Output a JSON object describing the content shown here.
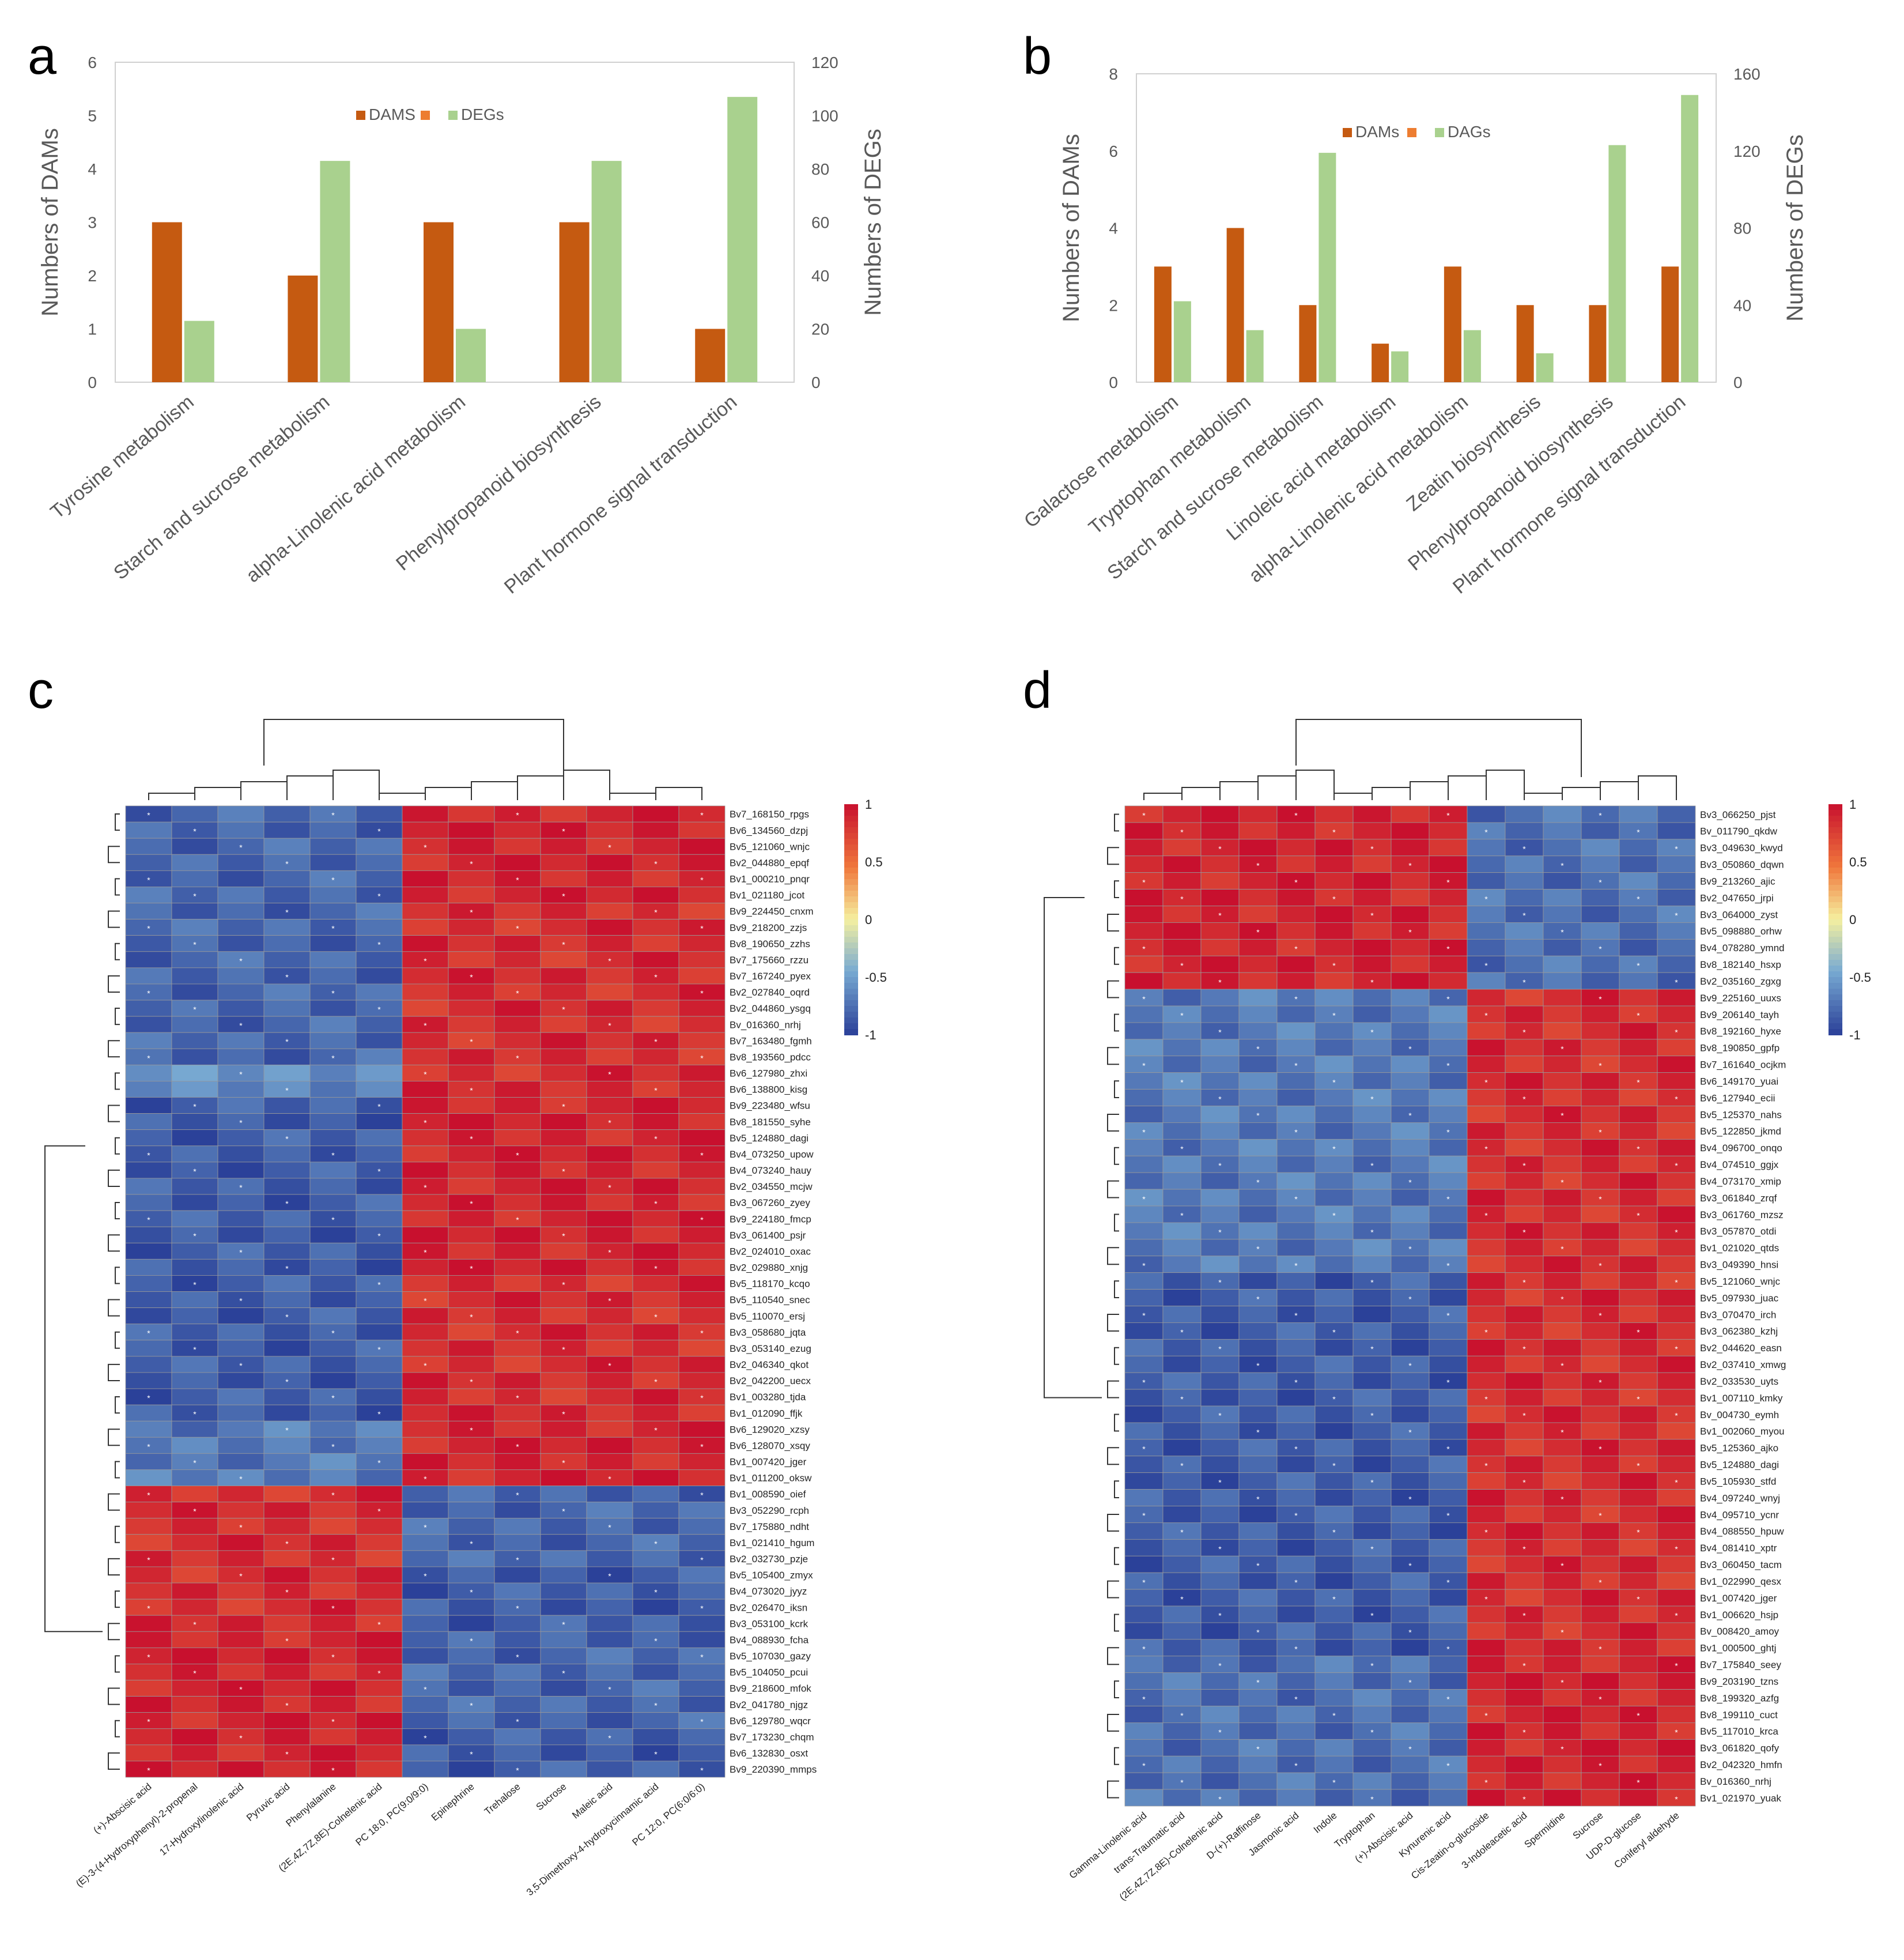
{
  "panels": {
    "a": "a",
    "b": "b",
    "c": "c",
    "d": "d"
  },
  "colors": {
    "dams": "#c55a11",
    "degs": "#a9d18e",
    "legend_mid": "#ed7d31",
    "hm_low": "#2a3f98",
    "hm_mid": "#f5f0a0",
    "hm_high": "#c8102e"
  },
  "chart_data": [
    {
      "id": "a",
      "type": "bar",
      "categories": [
        "Tyrosine metabolism",
        "Starch and sucrose metabolism",
        "alpha-Linolenic acid metabolism",
        "Phenylpropanoid biosynthesis",
        "Plant hormone signal transduction"
      ],
      "series": [
        {
          "name": "DAMS",
          "axis": "left",
          "values": [
            3,
            2,
            3,
            3,
            1
          ]
        },
        {
          "name": "DEGs",
          "axis": "right",
          "values": [
            23,
            83,
            20,
            83,
            107
          ]
        }
      ],
      "legend": [
        "DAMS",
        "",
        "DEGs"
      ],
      "ylabel": "Numbers of DAMs",
      "y2label": "Numbers of DEGs",
      "ylim": [
        0,
        6
      ],
      "y2lim": [
        0,
        120
      ],
      "yticks": [
        0,
        1,
        2,
        3,
        4,
        5,
        6
      ],
      "y2ticks": [
        0,
        20,
        40,
        60,
        80,
        100,
        120
      ]
    },
    {
      "id": "b",
      "type": "bar",
      "categories": [
        "Galactose metabolism",
        "Tryptophan metabolism",
        "Starch and sucrose metabolism",
        "Linoleic acid metabolism",
        "alpha-Linolenic acid metabolism",
        "Zeatin biosynthesis",
        "Phenylpropanoid biosynthesis",
        "Plant hormone signal transduction"
      ],
      "series": [
        {
          "name": "DAMs",
          "axis": "left",
          "values": [
            3,
            4,
            2,
            1,
            3,
            2,
            2,
            3
          ]
        },
        {
          "name": "DAGs",
          "axis": "right",
          "values": [
            42,
            27,
            119,
            16,
            27,
            15,
            123,
            149
          ]
        }
      ],
      "legend": [
        "DAMs",
        "",
        "DAGs"
      ],
      "ylabel": "Numbers of DAMs",
      "y2label": "Numbers of DEGs",
      "ylim": [
        0,
        8
      ],
      "y2lim": [
        0,
        160
      ],
      "yticks": [
        0,
        2,
        4,
        6,
        8
      ],
      "y2ticks": [
        0,
        40,
        80,
        120,
        160
      ]
    },
    {
      "id": "c",
      "type": "heatmap",
      "columns": [
        "(+)-Abscisic acid",
        "(E)-3-(4-Hydroxyphenyl)-2-propenal",
        "17-Hydroxylinolenic acid",
        "Pyruvic acid",
        "Phenylalanine",
        "(2E,4Z,7Z,8E)-Colnelenic acid",
        "PC 18:0, PC(9:0/9:0)",
        "Epinephrine",
        "Trehalose",
        "Sucrose",
        "Maleic acid",
        "3,5-Dimethoxy-4-hydroxycinnamic acid",
        "PC 12:0, PC(6:0/6:0)"
      ],
      "rows": [
        "Bv7_168150_rpgs",
        "Bv6_134560_dzpj",
        "Bv5_121060_wnjc",
        "Bv2_044880_epqf",
        "Bv1_000210_pnqr",
        "Bv1_021180_jcot",
        "Bv9_224450_cnxm",
        "Bv9_218200_zzjs",
        "Bv8_190650_zzhs",
        "Bv7_175660_rzzu",
        "Bv7_167240_pyex",
        "Bv2_027840_oqrd",
        "Bv2_044860_ysgq",
        "Bv_016360_nrhj",
        "Bv7_163480_fgmh",
        "Bv8_193560_pdcc",
        "Bv6_127980_zhxi",
        "Bv6_138800_kisg",
        "Bv9_223480_wfsu",
        "Bv8_181550_syhe",
        "Bv5_124880_dagi",
        "Bv4_073250_upow",
        "Bv4_073240_hauy",
        "Bv2_034550_mcjw",
        "Bv3_067260_zyey",
        "Bv9_224180_fmcp",
        "Bv3_061400_psjr",
        "Bv2_024010_oxac",
        "Bv2_029880_xnjg",
        "Bv5_118170_kcqo",
        "Bv5_110540_snec",
        "Bv5_110070_ersj",
        "Bv3_058680_jqta",
        "Bv3_053140_ezug",
        "Bv2_046340_qkot",
        "Bv2_042200_uecx",
        "Bv1_003280_tjda",
        "Bv1_012090_ffjk",
        "Bv6_129020_xzsy",
        "Bv6_128070_xsqy",
        "Bv1_007420_jger",
        "Bv1_011200_oksw",
        "Bv1_008590_oief",
        "Bv3_052290_rcph",
        "Bv7_175880_ndht",
        "Bv1_021410_hgum",
        "Bv2_032730_pzje",
        "Bv5_105400_zmyx",
        "Bv4_073020_jyyz",
        "Bv2_026470_iksn",
        "Bv3_053100_kcrk",
        "Bv4_088930_fcha",
        "Bv5_107030_gazy",
        "Bv5_104050_pcui",
        "Bv9_218600_mfok",
        "Bv2_041780_njgz",
        "Bv6_129780_wqcr",
        "Bv7_173230_chqm",
        "Bv6_132830_osxt",
        "Bv9_220390_mmps"
      ],
      "row_groups": [
        [
          0,
          6,
          -0.8,
          0.9
        ],
        [
          6,
          16,
          -0.8,
          0.85
        ],
        [
          16,
          18,
          -0.6,
          0.85
        ],
        [
          18,
          29,
          -0.85,
          0.9
        ],
        [
          29,
          38,
          -0.85,
          0.85
        ],
        [
          38,
          42,
          -0.7,
          0.9
        ],
        [
          42,
          47,
          0.85,
          -0.8
        ],
        [
          47,
          51,
          0.85,
          -0.85
        ],
        [
          51,
          57,
          0.9,
          -0.8
        ],
        [
          57,
          60,
          0.9,
          -0.85
        ]
      ],
      "split_col": 6,
      "colorbar_ticks": [
        1,
        0.5,
        0,
        -0.5,
        -1
      ]
    },
    {
      "id": "d",
      "type": "heatmap",
      "columns": [
        "Gamma-Linolenic acid",
        "trans-Traumatic acid",
        "(2E,4Z,7Z,8E)-Colnelenic acid",
        "D-(+)-Raffinose",
        "Jasmonic acid",
        "Indole",
        "Tryptophan",
        "(+)-Abscisic acid",
        "Kynurenic acid",
        "Cis-Zeatin-o-glucoside",
        "3-Indoleacetic acid",
        "Spermidine",
        "Sucrose",
        "UDP-D-glucose",
        "Coniferyl aldehyde"
      ],
      "rows": [
        "Bv3_066250_pjst",
        "Bv_011790_qkdw",
        "Bv3_049630_kwyd",
        "Bv3_050860_dqwn",
        "Bv9_213260_ajic",
        "Bv2_047650_jrpi",
        "Bv3_064000_zyst",
        "Bv5_098880_orhw",
        "Bv4_078280_ymnd",
        "Bv8_182140_hsxp",
        "Bv2_035160_zgxg",
        "Bv9_225160_uuxs",
        "Bv9_206140_tayh",
        "Bv8_192160_hyxe",
        "Bv8_190850_gpfp",
        "Bv7_161640_ocjkm",
        "Bv6_149170_yuai",
        "Bv6_127940_ecii",
        "Bv5_125370_nahs",
        "Bv5_122850_jkmd",
        "Bv4_096700_onqo",
        "Bv4_074510_ggjx",
        "Bv4_073170_xmip",
        "Bv3_061840_zrqf",
        "Bv3_061760_mzsz",
        "Bv3_057870_otdi",
        "Bv1_021020_qtds",
        "Bv3_049390_hnsi",
        "Bv5_121060_wnjc",
        "Bv5_097930_juac",
        "Bv3_070470_irch",
        "Bv3_062380_kzhj",
        "Bv2_044620_easn",
        "Bv2_037410_xmwg",
        "Bv2_033530_uyts",
        "Bv1_007110_kmky",
        "Bv_004730_eymh",
        "Bv1_002060_myou",
        "Bv5_125360_ajko",
        "Bv5_124880_dagi",
        "Bv5_105930_stfd",
        "Bv4_097240_wnyj",
        "Bv4_095710_ycnr",
        "Bv4_088550_hpuw",
        "Bv4_081410_xptr",
        "Bv3_060450_tacm",
        "Bv1_022990_qesx",
        "Bv1_007420_jger",
        "Bv1_006620_hsjp",
        "Bv_008420_amoy",
        "Bv1_000500_ghtj",
        "Bv7_175840_seey",
        "Bv9_203190_tzns",
        "Bv8_199320_azfg",
        "Bv8_199110_cuct",
        "Bv5_117010_krca",
        "Bv3_061820_qofy",
        "Bv2_042320_hmfn",
        "Bv_016360_nrhj",
        "Bv1_021970_yuak"
      ],
      "row_groups": [
        [
          0,
          11,
          0.9,
          -0.75
        ],
        [
          11,
          28,
          -0.7,
          0.85
        ],
        [
          28,
          51,
          -0.85,
          0.85
        ],
        [
          51,
          60,
          -0.75,
          0.9
        ]
      ],
      "split_col": 9,
      "colorbar_ticks": [
        1,
        0.5,
        0,
        -0.5,
        -1
      ]
    }
  ]
}
